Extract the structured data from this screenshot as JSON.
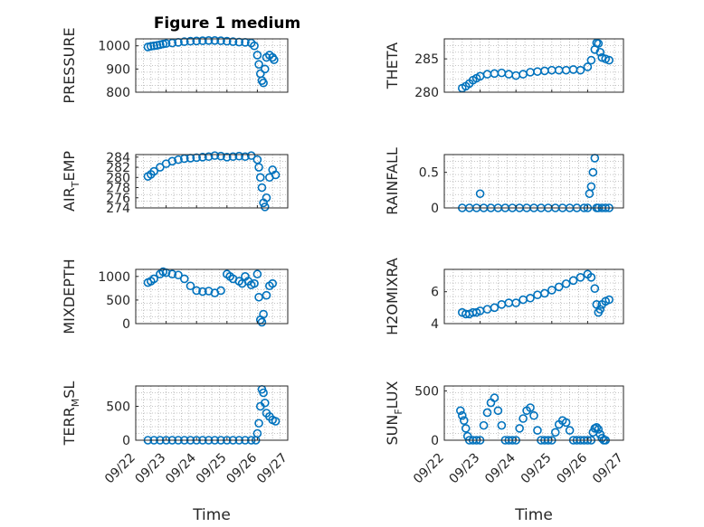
{
  "figure_title": "Figure 1 medium",
  "marker_color": "#0072BD",
  "chart_data": [
    {
      "id": "pressure",
      "type": "scatter",
      "ylabel_main": "PRESSURE",
      "ylabel_sub": "",
      "ylabel_tail": "",
      "yticks": [
        800,
        900,
        1000
      ],
      "ylim": [
        800,
        1030
      ],
      "x_ticks": [
        "09/22",
        "09/23",
        "09/24",
        "09/25",
        "09/26",
        "09/27"
      ],
      "xlim": [
        0,
        5
      ],
      "show_x_ticklabels": false,
      "xlabel": "",
      "x": [
        0.4,
        0.5,
        0.6,
        0.7,
        0.8,
        0.9,
        1.0,
        1.2,
        1.4,
        1.6,
        1.8,
        2.0,
        2.2,
        2.4,
        2.6,
        2.8,
        3.0,
        3.2,
        3.4,
        3.6,
        3.8,
        3.9,
        4.0,
        4.05,
        4.1,
        4.15,
        4.2,
        4.25,
        4.3,
        4.4,
        4.5,
        4.55
      ],
      "y": [
        995,
        998,
        1000,
        1002,
        1005,
        1008,
        1010,
        1012,
        1015,
        1018,
        1020,
        1021,
        1022,
        1023,
        1023,
        1022,
        1020,
        1018,
        1016,
        1015,
        1012,
        1000,
        960,
        920,
        880,
        850,
        840,
        900,
        950,
        960,
        950,
        940
      ]
    },
    {
      "id": "theta",
      "type": "scatter",
      "ylabel_main": "THETA",
      "ylabel_sub": "",
      "ylabel_tail": "",
      "yticks": [
        280,
        285
      ],
      "ylim": [
        280,
        288
      ],
      "x_ticks": [
        "09/22",
        "09/23",
        "09/24",
        "09/25",
        "09/26",
        "09/27"
      ],
      "xlim": [
        0,
        5
      ],
      "show_x_ticklabels": false,
      "xlabel": "",
      "x": [
        0.5,
        0.6,
        0.7,
        0.8,
        0.9,
        1.0,
        1.2,
        1.4,
        1.6,
        1.8,
        2.0,
        2.2,
        2.4,
        2.6,
        2.8,
        3.0,
        3.2,
        3.4,
        3.6,
        3.8,
        4.0,
        4.1,
        4.2,
        4.25,
        4.3,
        4.35,
        4.4,
        4.5,
        4.6
      ],
      "y": [
        280.6,
        280.9,
        281.3,
        281.8,
        282.1,
        282.4,
        282.7,
        282.8,
        282.9,
        282.7,
        282.5,
        282.7,
        283.0,
        283.1,
        283.2,
        283.3,
        283.3,
        283.3,
        283.4,
        283.3,
        283.8,
        284.8,
        286.4,
        287.4,
        287.3,
        286.0,
        285.2,
        285.0,
        284.8
      ]
    },
    {
      "id": "air_temp",
      "type": "scatter",
      "ylabel_main": "AIR",
      "ylabel_sub": "T",
      "ylabel_tail": "EMP",
      "yticks": [
        274,
        276,
        278,
        280,
        282,
        284
      ],
      "ylim": [
        274,
        284.5
      ],
      "x_ticks": [
        "09/22",
        "09/23",
        "09/24",
        "09/25",
        "09/26",
        "09/27"
      ],
      "xlim": [
        0,
        5
      ],
      "show_x_ticklabels": false,
      "xlabel": "",
      "x": [
        0.4,
        0.5,
        0.6,
        0.8,
        1.0,
        1.2,
        1.4,
        1.6,
        1.8,
        2.0,
        2.2,
        2.4,
        2.6,
        2.8,
        3.0,
        3.2,
        3.4,
        3.6,
        3.8,
        4.0,
        4.05,
        4.1,
        4.15,
        4.2,
        4.25,
        4.3,
        4.4,
        4.5,
        4.6
      ],
      "y": [
        280.2,
        280.6,
        281.2,
        282.0,
        282.7,
        283.2,
        283.5,
        283.7,
        283.8,
        283.9,
        284.0,
        284.1,
        284.3,
        284.2,
        284.0,
        284.1,
        284.2,
        284.1,
        284.3,
        283.5,
        282.0,
        280.0,
        278.0,
        275.0,
        274.2,
        276.0,
        280.0,
        281.5,
        280.5
      ]
    },
    {
      "id": "rainfall",
      "type": "scatter",
      "ylabel_main": "RAINFALL",
      "ylabel_sub": "",
      "ylabel_tail": "",
      "yticks": [
        0,
        0.5
      ],
      "ylim": [
        0,
        0.75
      ],
      "x_ticks": [
        "09/22",
        "09/23",
        "09/24",
        "09/25",
        "09/26",
        "09/27"
      ],
      "xlim": [
        0,
        5
      ],
      "show_x_ticklabels": false,
      "xlabel": "",
      "x": [
        0.5,
        0.7,
        0.9,
        1.0,
        1.1,
        1.3,
        1.5,
        1.7,
        1.9,
        2.1,
        2.3,
        2.5,
        2.7,
        2.9,
        3.1,
        3.3,
        3.5,
        3.7,
        3.9,
        4.0,
        4.05,
        4.1,
        4.15,
        4.2,
        4.25,
        4.3,
        4.4,
        4.5,
        4.6
      ],
      "y": [
        0,
        0,
        0,
        0.2,
        0,
        0,
        0,
        0,
        0,
        0,
        0,
        0,
        0,
        0,
        0,
        0,
        0,
        0,
        0,
        0,
        0.2,
        0.3,
        0.5,
        0.7,
        0,
        0,
        0,
        0,
        0
      ]
    },
    {
      "id": "mixdepth",
      "type": "scatter",
      "ylabel_main": "MIXDEPTH",
      "ylabel_sub": "",
      "ylabel_tail": "",
      "yticks": [
        0,
        500,
        1000
      ],
      "ylim": [
        0,
        1150
      ],
      "x_ticks": [
        "09/22",
        "09/23",
        "09/24",
        "09/25",
        "09/26",
        "09/27"
      ],
      "xlim": [
        0,
        5
      ],
      "show_x_ticklabels": false,
      "xlabel": "",
      "x": [
        0.4,
        0.5,
        0.6,
        0.8,
        0.9,
        1.0,
        1.2,
        1.4,
        1.6,
        1.8,
        2.0,
        2.2,
        2.4,
        2.6,
        2.8,
        3.0,
        3.1,
        3.2,
        3.4,
        3.5,
        3.6,
        3.7,
        3.8,
        3.9,
        4.0,
        4.05,
        4.1,
        4.15,
        4.2,
        4.3,
        4.4,
        4.5
      ],
      "y": [
        870,
        900,
        950,
        1050,
        1100,
        1080,
        1050,
        1030,
        950,
        800,
        700,
        680,
        690,
        650,
        700,
        1050,
        1000,
        950,
        900,
        850,
        1000,
        900,
        820,
        850,
        1050,
        560,
        80,
        30,
        200,
        600,
        800,
        850
      ]
    },
    {
      "id": "h2omixra",
      "type": "scatter",
      "ylabel_main": "H2OMIXRA",
      "ylabel_sub": "",
      "ylabel_tail": "",
      "yticks": [
        4,
        6
      ],
      "ylim": [
        4,
        7.4
      ],
      "x_ticks": [
        "09/22",
        "09/23",
        "09/24",
        "09/25",
        "09/26",
        "09/27"
      ],
      "xlim": [
        0,
        5
      ],
      "show_x_ticklabels": false,
      "xlabel": "",
      "x": [
        0.5,
        0.6,
        0.7,
        0.8,
        0.9,
        1.0,
        1.2,
        1.4,
        1.6,
        1.8,
        2.0,
        2.2,
        2.4,
        2.6,
        2.8,
        3.0,
        3.2,
        3.4,
        3.6,
        3.8,
        4.0,
        4.1,
        4.2,
        4.25,
        4.3,
        4.35,
        4.4,
        4.5,
        4.6
      ],
      "y": [
        4.7,
        4.6,
        4.6,
        4.7,
        4.7,
        4.8,
        4.9,
        5.0,
        5.2,
        5.3,
        5.3,
        5.5,
        5.6,
        5.8,
        5.9,
        6.1,
        6.3,
        6.5,
        6.7,
        6.9,
        7.1,
        6.9,
        6.2,
        5.2,
        4.7,
        4.9,
        5.2,
        5.4,
        5.5
      ]
    },
    {
      "id": "terr_msl",
      "type": "scatter",
      "ylabel_main": "TERR",
      "ylabel_sub": "M",
      "ylabel_tail": "SL",
      "yticks": [
        0,
        500
      ],
      "ylim": [
        0,
        800
      ],
      "x_ticks": [
        "09/22",
        "09/23",
        "09/24",
        "09/25",
        "09/26",
        "09/27"
      ],
      "xlim": [
        0,
        5
      ],
      "show_x_ticklabels": true,
      "xlabel": "Time",
      "x": [
        0.4,
        0.6,
        0.8,
        1.0,
        1.2,
        1.4,
        1.6,
        1.8,
        2.0,
        2.2,
        2.4,
        2.6,
        2.8,
        3.0,
        3.2,
        3.4,
        3.6,
        3.8,
        3.95,
        4.0,
        4.05,
        4.1,
        4.15,
        4.2,
        4.25,
        4.3,
        4.4,
        4.5,
        4.6
      ],
      "y": [
        0,
        0,
        0,
        0,
        0,
        0,
        0,
        0,
        0,
        0,
        0,
        0,
        0,
        0,
        0,
        0,
        0,
        0,
        0,
        100,
        250,
        500,
        750,
        700,
        550,
        400,
        350,
        300,
        280
      ]
    },
    {
      "id": "sun_flux",
      "type": "scatter",
      "ylabel_main": "SUN",
      "ylabel_sub": "F",
      "ylabel_tail": "LUX",
      "yticks": [
        0,
        500
      ],
      "ylim": [
        0,
        550
      ],
      "x_ticks": [
        "09/22",
        "09/23",
        "09/24",
        "09/25",
        "09/26",
        "09/27"
      ],
      "xlim": [
        0,
        5
      ],
      "show_x_ticklabels": true,
      "xlabel": "Time",
      "x": [
        0.45,
        0.5,
        0.55,
        0.6,
        0.65,
        0.7,
        0.8,
        0.9,
        1.0,
        1.1,
        1.2,
        1.3,
        1.4,
        1.5,
        1.6,
        1.7,
        1.8,
        1.9,
        2.0,
        2.1,
        2.2,
        2.3,
        2.4,
        2.5,
        2.6,
        2.7,
        2.8,
        2.9,
        3.0,
        3.1,
        3.2,
        3.3,
        3.4,
        3.5,
        3.6,
        3.7,
        3.8,
        3.9,
        4.0,
        4.1,
        4.15,
        4.2,
        4.25,
        4.3,
        4.35,
        4.4,
        4.45,
        4.5
      ],
      "y": [
        300,
        250,
        200,
        120,
        40,
        0,
        0,
        0,
        0,
        150,
        280,
        380,
        430,
        300,
        150,
        0,
        0,
        0,
        0,
        120,
        220,
        300,
        330,
        250,
        100,
        0,
        0,
        0,
        0,
        80,
        160,
        200,
        180,
        100,
        0,
        0,
        0,
        0,
        0,
        0,
        80,
        120,
        130,
        110,
        60,
        20,
        0,
        0
      ]
    }
  ]
}
